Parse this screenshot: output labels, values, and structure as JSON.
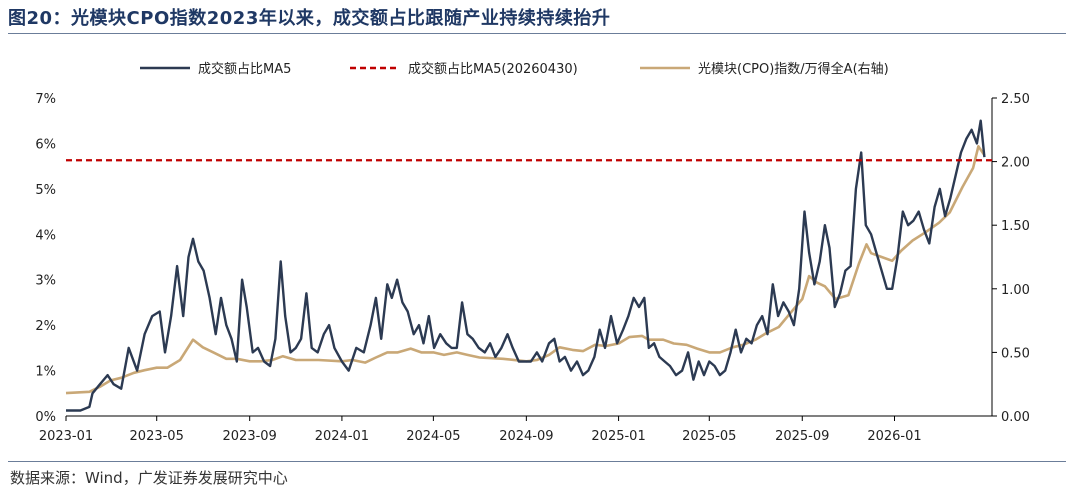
{
  "figure": {
    "title": "图20：光模块CPO指数2023年以来，成交额占比跟随产业持续持续抬升",
    "source": "数据来源：Wind，广发证券发展研究中心"
  },
  "chart_data": {
    "type": "line",
    "legend_position": "top",
    "grid": false,
    "x_labels": [
      "2023-01",
      "2023-05",
      "2023-09",
      "2024-01",
      "2024-05",
      "2024-09",
      "2025-01",
      "2025-05",
      "2025-09",
      "2026-01"
    ],
    "xlim": [
      "2023-01-01",
      "2026-05-10"
    ],
    "y_left": {
      "ylim": [
        0,
        7
      ],
      "ticks": [
        "0%",
        "1%",
        "2%",
        "3%",
        "4%",
        "5%",
        "6%",
        "7%"
      ],
      "unit": "%"
    },
    "y_right": {
      "ylim": [
        0,
        2.5
      ],
      "ticks": [
        "0.00",
        "0.50",
        "1.00",
        "1.50",
        "2.00",
        "2.50"
      ]
    },
    "colors": {
      "turnover": "#2c3a52",
      "reference": "#c00000",
      "index": "#c9a877"
    },
    "series": [
      {
        "name": "成交额占比MA5",
        "axis": "left",
        "style": "solid",
        "points": [
          [
            "2023-01-01",
            0.12
          ],
          [
            "2023-01-20",
            0.12
          ],
          [
            "2023-02-01",
            0.2
          ],
          [
            "2023-02-05",
            0.5
          ],
          [
            "2023-02-15",
            0.7
          ],
          [
            "2023-02-25",
            0.9
          ],
          [
            "2023-03-05",
            0.7
          ],
          [
            "2023-03-15",
            0.6
          ],
          [
            "2023-03-25",
            1.5
          ],
          [
            "2023-04-05",
            1.0
          ],
          [
            "2023-04-15",
            1.8
          ],
          [
            "2023-04-25",
            2.2
          ],
          [
            "2023-05-05",
            2.3
          ],
          [
            "2023-05-12",
            1.4
          ],
          [
            "2023-05-20",
            2.2
          ],
          [
            "2023-05-28",
            3.3
          ],
          [
            "2023-06-05",
            2.2
          ],
          [
            "2023-06-12",
            3.5
          ],
          [
            "2023-06-18",
            3.9
          ],
          [
            "2023-06-25",
            3.4
          ],
          [
            "2023-07-02",
            3.2
          ],
          [
            "2023-07-10",
            2.6
          ],
          [
            "2023-07-18",
            1.8
          ],
          [
            "2023-07-25",
            2.6
          ],
          [
            "2023-08-01",
            2.0
          ],
          [
            "2023-08-08",
            1.7
          ],
          [
            "2023-08-15",
            1.2
          ],
          [
            "2023-08-22",
            3.0
          ],
          [
            "2023-08-28",
            2.4
          ],
          [
            "2023-09-05",
            1.4
          ],
          [
            "2023-09-12",
            1.5
          ],
          [
            "2023-09-20",
            1.2
          ],
          [
            "2023-09-28",
            1.1
          ],
          [
            "2023-10-05",
            1.7
          ],
          [
            "2023-10-12",
            3.4
          ],
          [
            "2023-10-18",
            2.2
          ],
          [
            "2023-10-25",
            1.4
          ],
          [
            "2023-11-01",
            1.5
          ],
          [
            "2023-11-08",
            1.7
          ],
          [
            "2023-11-15",
            2.7
          ],
          [
            "2023-11-22",
            1.5
          ],
          [
            "2023-11-30",
            1.4
          ],
          [
            "2023-12-08",
            1.8
          ],
          [
            "2023-12-15",
            2.0
          ],
          [
            "2023-12-22",
            1.5
          ],
          [
            "2024-01-01",
            1.2
          ],
          [
            "2024-01-10",
            1.0
          ],
          [
            "2024-01-20",
            1.5
          ],
          [
            "2024-01-30",
            1.4
          ],
          [
            "2024-02-08",
            2.0
          ],
          [
            "2024-02-15",
            2.6
          ],
          [
            "2024-02-22",
            1.7
          ],
          [
            "2024-03-01",
            2.9
          ],
          [
            "2024-03-07",
            2.6
          ],
          [
            "2024-03-14",
            3.0
          ],
          [
            "2024-03-21",
            2.5
          ],
          [
            "2024-03-28",
            2.3
          ],
          [
            "2024-04-05",
            1.8
          ],
          [
            "2024-04-12",
            2.0
          ],
          [
            "2024-04-18",
            1.6
          ],
          [
            "2024-04-25",
            2.2
          ],
          [
            "2024-05-02",
            1.5
          ],
          [
            "2024-05-10",
            1.8
          ],
          [
            "2024-05-18",
            1.6
          ],
          [
            "2024-05-25",
            1.5
          ],
          [
            "2024-06-01",
            1.5
          ],
          [
            "2024-06-08",
            2.5
          ],
          [
            "2024-06-15",
            1.8
          ],
          [
            "2024-06-22",
            1.7
          ],
          [
            "2024-06-30",
            1.5
          ],
          [
            "2024-07-08",
            1.4
          ],
          [
            "2024-07-15",
            1.6
          ],
          [
            "2024-07-22",
            1.3
          ],
          [
            "2024-07-30",
            1.5
          ],
          [
            "2024-08-07",
            1.8
          ],
          [
            "2024-08-14",
            1.5
          ],
          [
            "2024-08-22",
            1.2
          ],
          [
            "2024-08-30",
            1.2
          ],
          [
            "2024-09-07",
            1.2
          ],
          [
            "2024-09-15",
            1.4
          ],
          [
            "2024-09-22",
            1.2
          ],
          [
            "2024-10-01",
            1.6
          ],
          [
            "2024-10-08",
            1.7
          ],
          [
            "2024-10-15",
            1.2
          ],
          [
            "2024-10-22",
            1.3
          ],
          [
            "2024-10-30",
            1.0
          ],
          [
            "2024-11-07",
            1.2
          ],
          [
            "2024-11-15",
            0.9
          ],
          [
            "2024-11-22",
            1.0
          ],
          [
            "2024-11-30",
            1.3
          ],
          [
            "2024-12-07",
            1.9
          ],
          [
            "2024-12-14",
            1.5
          ],
          [
            "2024-12-22",
            2.2
          ],
          [
            "2024-12-30",
            1.6
          ],
          [
            "2025-01-07",
            1.9
          ],
          [
            "2025-01-14",
            2.2
          ],
          [
            "2025-01-21",
            2.6
          ],
          [
            "2025-01-28",
            2.4
          ],
          [
            "2025-02-04",
            2.6
          ],
          [
            "2025-02-10",
            1.5
          ],
          [
            "2025-02-17",
            1.6
          ],
          [
            "2025-02-24",
            1.3
          ],
          [
            "2025-03-03",
            1.2
          ],
          [
            "2025-03-10",
            1.1
          ],
          [
            "2025-03-18",
            0.9
          ],
          [
            "2025-03-26",
            1.0
          ],
          [
            "2025-04-03",
            1.4
          ],
          [
            "2025-04-10",
            0.8
          ],
          [
            "2025-04-17",
            1.2
          ],
          [
            "2025-04-24",
            0.9
          ],
          [
            "2025-05-01",
            1.2
          ],
          [
            "2025-05-08",
            1.1
          ],
          [
            "2025-05-15",
            0.9
          ],
          [
            "2025-05-22",
            1.0
          ],
          [
            "2025-05-29",
            1.4
          ],
          [
            "2025-06-05",
            1.9
          ],
          [
            "2025-06-12",
            1.4
          ],
          [
            "2025-06-19",
            1.7
          ],
          [
            "2025-06-26",
            1.6
          ],
          [
            "2025-07-03",
            2.0
          ],
          [
            "2025-07-10",
            2.2
          ],
          [
            "2025-07-17",
            1.8
          ],
          [
            "2025-07-24",
            2.9
          ],
          [
            "2025-07-31",
            2.2
          ],
          [
            "2025-08-07",
            2.5
          ],
          [
            "2025-08-14",
            2.3
          ],
          [
            "2025-08-21",
            2.0
          ],
          [
            "2025-08-28",
            2.8
          ],
          [
            "2025-09-04",
            4.5
          ],
          [
            "2025-09-10",
            3.6
          ],
          [
            "2025-09-17",
            2.9
          ],
          [
            "2025-09-24",
            3.4
          ],
          [
            "2025-10-01",
            4.2
          ],
          [
            "2025-10-07",
            3.7
          ],
          [
            "2025-10-14",
            2.4
          ],
          [
            "2025-10-21",
            2.7
          ],
          [
            "2025-10-28",
            3.2
          ],
          [
            "2025-11-04",
            3.3
          ],
          [
            "2025-11-11",
            5.0
          ],
          [
            "2025-11-18",
            5.8
          ],
          [
            "2025-11-24",
            4.2
          ],
          [
            "2025-12-01",
            4.0
          ],
          [
            "2025-12-08",
            3.6
          ],
          [
            "2025-12-15",
            3.2
          ],
          [
            "2025-12-22",
            2.8
          ],
          [
            "2025-12-29",
            2.8
          ],
          [
            "2026-01-05",
            3.5
          ],
          [
            "2026-01-12",
            4.5
          ],
          [
            "2026-01-19",
            4.2
          ],
          [
            "2026-01-26",
            4.3
          ],
          [
            "2026-02-02",
            4.5
          ],
          [
            "2026-02-09",
            4.1
          ],
          [
            "2026-02-16",
            3.8
          ],
          [
            "2026-02-23",
            4.6
          ],
          [
            "2026-03-02",
            5.0
          ],
          [
            "2026-03-09",
            4.4
          ],
          [
            "2026-03-16",
            4.8
          ],
          [
            "2026-03-23",
            5.3
          ],
          [
            "2026-03-30",
            5.8
          ],
          [
            "2026-04-06",
            6.1
          ],
          [
            "2026-04-13",
            6.3
          ],
          [
            "2026-04-20",
            6.0
          ],
          [
            "2026-04-25",
            6.5
          ],
          [
            "2026-04-30",
            5.7
          ]
        ]
      },
      {
        "name": "成交额占比MA5(20260430)",
        "axis": "left",
        "style": "dashed",
        "value": 5.63
      },
      {
        "name": "光模块(CPO)指数/万得全A(右轴)",
        "axis": "right",
        "style": "solid",
        "points": [
          [
            "2023-01-01",
            0.18
          ],
          [
            "2023-02-01",
            0.19
          ],
          [
            "2023-02-15",
            0.23
          ],
          [
            "2023-03-01",
            0.28
          ],
          [
            "2023-03-15",
            0.3
          ],
          [
            "2023-04-01",
            0.34
          ],
          [
            "2023-04-15",
            0.36
          ],
          [
            "2023-05-01",
            0.38
          ],
          [
            "2023-05-15",
            0.38
          ],
          [
            "2023-06-01",
            0.44
          ],
          [
            "2023-06-18",
            0.6
          ],
          [
            "2023-07-01",
            0.54
          ],
          [
            "2023-07-15",
            0.5
          ],
          [
            "2023-08-01",
            0.45
          ],
          [
            "2023-08-15",
            0.45
          ],
          [
            "2023-09-01",
            0.43
          ],
          [
            "2023-09-15",
            0.43
          ],
          [
            "2023-10-01",
            0.44
          ],
          [
            "2023-10-15",
            0.47
          ],
          [
            "2023-11-01",
            0.44
          ],
          [
            "2023-12-01",
            0.44
          ],
          [
            "2024-01-01",
            0.43
          ],
          [
            "2024-01-15",
            0.44
          ],
          [
            "2024-02-01",
            0.42
          ],
          [
            "2024-02-15",
            0.46
          ],
          [
            "2024-03-01",
            0.5
          ],
          [
            "2024-03-15",
            0.5
          ],
          [
            "2024-04-01",
            0.53
          ],
          [
            "2024-04-15",
            0.5
          ],
          [
            "2024-05-01",
            0.5
          ],
          [
            "2024-05-15",
            0.48
          ],
          [
            "2024-06-01",
            0.5
          ],
          [
            "2024-06-15",
            0.48
          ],
          [
            "2024-07-01",
            0.46
          ],
          [
            "2024-08-01",
            0.45
          ],
          [
            "2024-09-01",
            0.43
          ],
          [
            "2024-09-15",
            0.44
          ],
          [
            "2024-10-01",
            0.48
          ],
          [
            "2024-10-15",
            0.54
          ],
          [
            "2024-11-01",
            0.52
          ],
          [
            "2024-11-15",
            0.51
          ],
          [
            "2024-12-01",
            0.56
          ],
          [
            "2024-12-15",
            0.55
          ],
          [
            "2025-01-01",
            0.57
          ],
          [
            "2025-01-15",
            0.62
          ],
          [
            "2025-02-01",
            0.63
          ],
          [
            "2025-02-10",
            0.6
          ],
          [
            "2025-03-01",
            0.6
          ],
          [
            "2025-03-15",
            0.57
          ],
          [
            "2025-04-01",
            0.56
          ],
          [
            "2025-04-15",
            0.53
          ],
          [
            "2025-05-01",
            0.5
          ],
          [
            "2025-05-15",
            0.5
          ],
          [
            "2025-06-01",
            0.54
          ],
          [
            "2025-06-15",
            0.56
          ],
          [
            "2025-07-01",
            0.6
          ],
          [
            "2025-07-15",
            0.65
          ],
          [
            "2025-08-01",
            0.7
          ],
          [
            "2025-08-15",
            0.8
          ],
          [
            "2025-09-01",
            0.92
          ],
          [
            "2025-09-10",
            1.1
          ],
          [
            "2025-09-20",
            1.05
          ],
          [
            "2025-10-01",
            1.02
          ],
          [
            "2025-10-15",
            0.92
          ],
          [
            "2025-11-01",
            0.95
          ],
          [
            "2025-11-15",
            1.2
          ],
          [
            "2025-11-25",
            1.35
          ],
          [
            "2025-12-01",
            1.28
          ],
          [
            "2025-12-15",
            1.25
          ],
          [
            "2025-12-29",
            1.22
          ],
          [
            "2026-01-10",
            1.3
          ],
          [
            "2026-01-25",
            1.38
          ],
          [
            "2026-02-10",
            1.44
          ],
          [
            "2026-03-01",
            1.52
          ],
          [
            "2026-03-15",
            1.6
          ],
          [
            "2026-04-01",
            1.8
          ],
          [
            "2026-04-15",
            1.95
          ],
          [
            "2026-04-22",
            2.12
          ],
          [
            "2026-04-30",
            2.05
          ]
        ]
      }
    ]
  }
}
